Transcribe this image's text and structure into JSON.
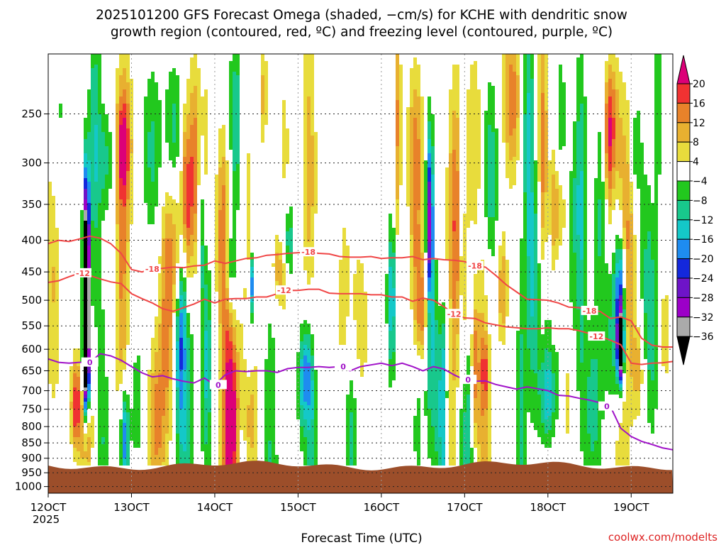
{
  "chart_data": {
    "type": "heatmap",
    "title_line1": "2025101200 GFS Forecast Omega (shaded, −cm/s) for KCHE with dendritic snow",
    "title_line2": "growth region (contoured, red, ºC) and freezing level (contoured, purple, ºC)",
    "xlabel": "Forecast Time (UTC)",
    "ylabel": "",
    "credit": "coolwx.com/modelts",
    "x_axis": {
      "range_hours": [
        0,
        180
      ],
      "ticks": [
        {
          "hour": 0,
          "label": "12OCT",
          "sublabel": "2025"
        },
        {
          "hour": 24,
          "label": "13OCT"
        },
        {
          "hour": 48,
          "label": "14OCT"
        },
        {
          "hour": 72,
          "label": "15OCT"
        },
        {
          "hour": 96,
          "label": "16OCT"
        },
        {
          "hour": 120,
          "label": "17OCT"
        },
        {
          "hour": 144,
          "label": "18OCT"
        },
        {
          "hour": 168,
          "label": "19OCT"
        }
      ]
    },
    "y_axis": {
      "scale": "log-pressure",
      "range_hPa": [
        1025,
        200
      ],
      "ticks": [
        "250",
        "300",
        "350",
        "400",
        "450",
        "500",
        "550",
        "600",
        "650",
        "700",
        "750",
        "800",
        "850",
        "900",
        "950",
        "1000"
      ]
    },
    "grid": true,
    "colorbar": {
      "labels": [
        "20",
        "16",
        "12",
        "8",
        "4",
        "−4",
        "−8",
        "−12",
        "−16",
        "−20",
        "−24",
        "−28",
        "−32",
        "−36"
      ],
      "bands": [
        "#dc0078",
        "#f03232",
        "#e8822a",
        "#e8b030",
        "#e8dc3c",
        "#ffffff",
        "#22c81e",
        "#18c88c",
        "#14c8c8",
        "#1e8cf0",
        "#1428dc",
        "#6e14c8",
        "#9c00c8",
        "#aaaaaa",
        "#000000"
      ]
    },
    "series": [
      {
        "name": "-18",
        "color": "#f04646",
        "x": [
          0,
          3,
          6,
          9,
          12,
          15,
          18,
          21,
          24,
          27,
          30,
          33,
          36,
          39,
          42,
          45,
          48,
          51,
          54,
          57,
          60,
          63,
          66,
          69,
          72,
          75,
          78,
          81,
          84,
          87,
          90,
          93,
          96,
          99,
          102,
          105,
          108,
          111,
          114,
          117,
          120,
          123,
          126,
          129,
          132,
          135,
          138,
          141,
          144,
          147,
          150,
          153,
          156,
          159,
          162,
          165,
          168,
          171,
          174,
          177,
          180
        ],
        "y": [
          405,
          400,
          402,
          398,
          394,
          397,
          405,
          420,
          446,
          450,
          445,
          444,
          442,
          443,
          440,
          439,
          432,
          436,
          432,
          428,
          427,
          423,
          422,
          420,
          419,
          418,
          420,
          421,
          425,
          426,
          426,
          425,
          428,
          427,
          427,
          425,
          430,
          428,
          430,
          431,
          433,
          440,
          442,
          456,
          472,
          485,
          498,
          499,
          500,
          505,
          513,
          514,
          520,
          521,
          535,
          532,
          540,
          576,
          591,
          595,
          595
        ],
        "labels": [
          {
            "x": 30,
            "text": "-18"
          },
          {
            "x": 75,
            "text": "-18"
          },
          {
            "x": 123,
            "text": "-18"
          },
          {
            "x": 156,
            "text": "-18"
          }
        ]
      },
      {
        "name": "-12",
        "color": "#f04646",
        "x": [
          0,
          3,
          6,
          9,
          12,
          15,
          18,
          21,
          24,
          27,
          30,
          33,
          36,
          39,
          42,
          45,
          48,
          51,
          54,
          57,
          60,
          63,
          66,
          69,
          72,
          75,
          78,
          81,
          84,
          87,
          90,
          93,
          96,
          99,
          102,
          105,
          108,
          111,
          114,
          117,
          120,
          123,
          126,
          129,
          132,
          135,
          138,
          141,
          144,
          147,
          150,
          153,
          156,
          159,
          162,
          165,
          168,
          171,
          174,
          177,
          180
        ],
        "y": [
          468,
          465,
          458,
          452,
          456,
          462,
          467,
          470,
          488,
          497,
          505,
          516,
          521,
          514,
          507,
          498,
          505,
          498,
          497,
          497,
          494,
          494,
          488,
          482,
          482,
          480,
          480,
          487,
          488,
          488,
          488,
          490,
          490,
          494,
          494,
          502,
          496,
          500,
          512,
          526,
          534,
          535,
          544,
          548,
          552,
          554,
          556,
          556,
          554,
          556,
          556,
          560,
          566,
          572,
          580,
          590,
          632,
          635,
          632,
          631,
          628
        ],
        "labels": [
          {
            "x": 10,
            "text": "-12"
          },
          {
            "x": 68,
            "text": "-12"
          },
          {
            "x": 117,
            "text": "-12"
          },
          {
            "x": 158,
            "text": "-12"
          }
        ]
      },
      {
        "name": "0",
        "color": "#a012c8",
        "x": [
          0,
          3,
          6,
          9,
          12,
          15,
          18,
          21,
          24,
          27,
          30,
          33,
          36,
          39,
          42,
          45,
          48,
          51,
          54,
          57,
          60,
          63,
          66,
          69,
          72,
          75,
          78,
          81,
          84,
          87,
          90,
          93,
          96,
          99,
          102,
          105,
          108,
          111,
          114,
          117,
          120,
          123,
          126,
          129,
          132,
          135,
          138,
          141,
          144,
          147,
          150,
          153,
          156,
          159,
          162,
          165,
          168,
          171,
          174,
          177,
          180
        ],
        "y": [
          622,
          630,
          632,
          630,
          630,
          610,
          615,
          625,
          640,
          655,
          665,
          662,
          670,
          676,
          680,
          668,
          685,
          660,
          650,
          652,
          650,
          650,
          654,
          645,
          642,
          642,
          640,
          642,
          640,
          650,
          640,
          636,
          632,
          638,
          632,
          640,
          650,
          640,
          646,
          660,
          672,
          676,
          675,
          684,
          690,
          696,
          690,
          695,
          700,
          712,
          714,
          720,
          725,
          732,
          742,
          805,
          830,
          845,
          855,
          866,
          872
        ],
        "labels": [
          {
            "x": 12,
            "text": "0"
          },
          {
            "x": 49,
            "text": "0"
          },
          {
            "x": 85,
            "text": "0"
          },
          {
            "x": 121,
            "text": "0"
          },
          {
            "x": 161,
            "text": "0"
          }
        ]
      }
    ]
  }
}
